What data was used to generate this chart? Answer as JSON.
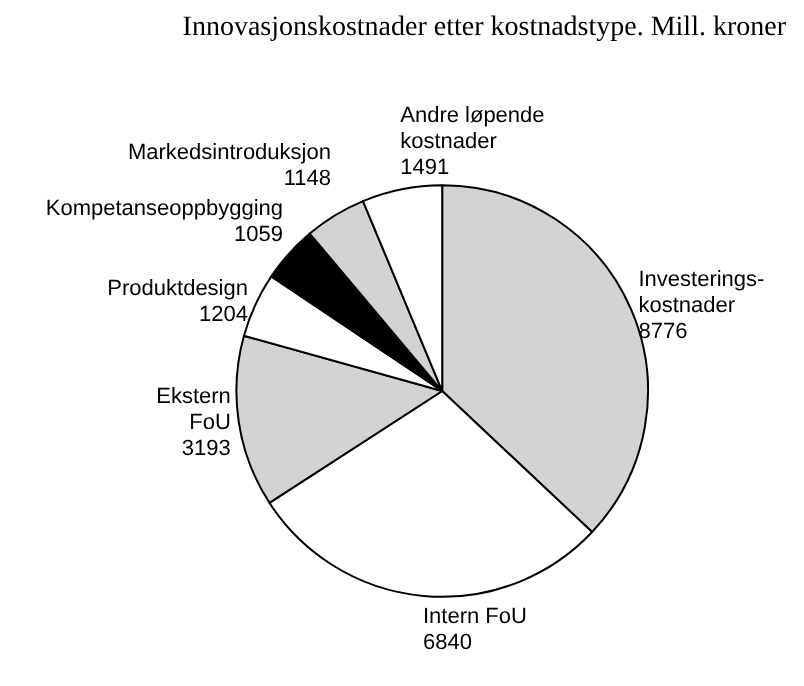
{
  "chart_data": {
    "type": "pie",
    "title": "Innovasjonskostnader etter kostnadstype. Mill. kroner",
    "categories": [
      "Investerings-\nkostnader",
      "Intern FoU",
      "Ekstern\nFoU",
      "Produktdesign",
      "Kompetanseoppbygging",
      "Markedsintroduksjon",
      "Andre løpende\nkostnader"
    ],
    "values": [
      8776,
      6840,
      3193,
      1204,
      1059,
      1148,
      1491
    ],
    "colors": [
      "#d3d3d3",
      "#ffffff",
      "#d3d3d3",
      "#ffffff",
      "#000000",
      "#d3d3d3",
      "#ffffff"
    ],
    "data_labels": true
  }
}
